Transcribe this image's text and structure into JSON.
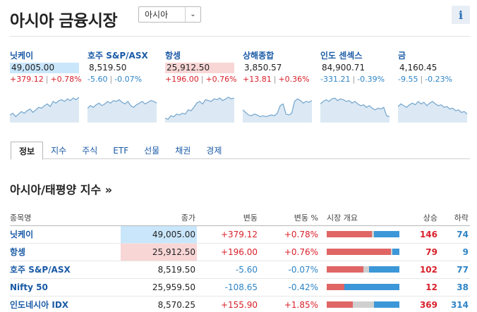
{
  "header": {
    "title": "아시아 금융시장",
    "region_value": "아시아",
    "info_label": "i"
  },
  "tickers": [
    {
      "name": "닛케이",
      "price": "49,005.00",
      "chg": "+379.12",
      "pct": "+0.78%",
      "dir": "up",
      "hl": "blue",
      "spark": [
        62,
        58,
        66,
        60,
        54,
        58,
        52,
        48,
        56,
        50,
        44,
        46,
        40,
        36,
        42,
        30,
        34,
        28,
        26,
        30,
        24,
        28,
        22,
        26,
        20
      ]
    },
    {
      "name": "호주 S&P/ASX",
      "price": "8,519.50",
      "chg": "-5.60",
      "pct": "-0.07%",
      "dir": "down",
      "hl": "",
      "spark": [
        46,
        40,
        44,
        38,
        34,
        40,
        36,
        30,
        34,
        28,
        30,
        26,
        32,
        36,
        30,
        40,
        44,
        38,
        34,
        30,
        36,
        32,
        28,
        30,
        34
      ]
    },
    {
      "name": "항셍",
      "price": "25,912.50",
      "chg": "+196.00",
      "pct": "+0.76%",
      "dir": "up",
      "hl": "red",
      "spark": [
        70,
        72,
        64,
        66,
        60,
        62,
        58,
        60,
        50,
        52,
        44,
        34,
        30,
        36,
        26,
        28,
        30,
        24,
        26,
        22,
        28,
        24,
        20,
        24,
        22
      ]
    },
    {
      "name": "상해종합",
      "price": "3,850.57",
      "chg": "+13.81",
      "pct": "+0.36%",
      "dir": "up",
      "hl": "",
      "spark": [
        50,
        56,
        62,
        64,
        60,
        62,
        66,
        64,
        66,
        64,
        62,
        64,
        58,
        40,
        36,
        60,
        62,
        58,
        30,
        24,
        28,
        34,
        30,
        32,
        28
      ]
    },
    {
      "name": "인도 센섹스",
      "price": "84,900.71",
      "chg": "-331.21",
      "pct": "-0.39%",
      "dir": "down",
      "hl": "",
      "spark": [
        36,
        30,
        26,
        30,
        24,
        22,
        28,
        24,
        26,
        30,
        28,
        34,
        30,
        36,
        40,
        38,
        44,
        40,
        46,
        50,
        46,
        48,
        44,
        64,
        66
      ]
    },
    {
      "name": "금",
      "price": "4,160.45",
      "chg": "-9.55",
      "pct": "-0.23%",
      "dir": "down",
      "hl": "",
      "spark": [
        42,
        36,
        40,
        44,
        38,
        34,
        38,
        30,
        36,
        32,
        40,
        34,
        30,
        36,
        40,
        38,
        44,
        42,
        48,
        46,
        52,
        50,
        56,
        54,
        60
      ]
    }
  ],
  "tabs": [
    "정보",
    "지수",
    "주식",
    "ETF",
    "선물",
    "채권",
    "경제"
  ],
  "section_title": "아시아/태평양 지수 »",
  "table": {
    "headers": {
      "name": "종목명",
      "close": "종가",
      "chg": "변동",
      "pct": "변동 %",
      "market": "시장 개요",
      "adv": "상승",
      "dec": "하락"
    },
    "rows": [
      {
        "name": "닛케이",
        "close": "49,005.00",
        "chg": "+379.12",
        "pct": "+0.78%",
        "dir": "up",
        "hl": "blue",
        "adv": "146",
        "dec": "74",
        "bar": [
          0.62,
          0.03,
          0.35
        ]
      },
      {
        "name": "항셍",
        "close": "25,912.50",
        "chg": "+196.00",
        "pct": "+0.76%",
        "dir": "up",
        "hl": "red",
        "adv": "79",
        "dec": "9",
        "bar": [
          0.88,
          0.02,
          0.1
        ]
      },
      {
        "name": "호주 S&P/ASX",
        "close": "8,519.50",
        "chg": "-5.60",
        "pct": "-0.07%",
        "dir": "down",
        "hl": "",
        "adv": "102",
        "dec": "77",
        "bar": [
          0.5,
          0.08,
          0.42
        ]
      },
      {
        "name": "Nifty 50",
        "close": "25,959.50",
        "chg": "-108.65",
        "pct": "-0.42%",
        "dir": "down",
        "hl": "",
        "adv": "12",
        "dec": "38",
        "bar": [
          0.24,
          0.0,
          0.76
        ]
      },
      {
        "name": "인도네시아 IDX",
        "close": "8,570.25",
        "chg": "+155.90",
        "pct": "+1.85%",
        "dir": "up",
        "hl": "",
        "adv": "369",
        "dec": "314",
        "bar": [
          0.36,
          0.29,
          0.35
        ]
      }
    ]
  },
  "colors": {
    "up": "#d8202a",
    "down": "#2e84c6",
    "link": "#1a5aa6",
    "spark_line": "#7aa9cf",
    "spark_fill": "#dce9f4"
  }
}
